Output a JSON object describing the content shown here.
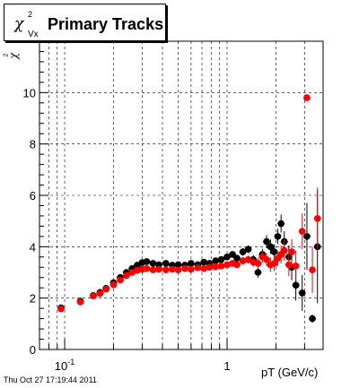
{
  "title_text": "Primary Tracks",
  "title_symbol": "χ",
  "title_sup": "2",
  "title_sub": "Vx",
  "date": "Thu Oct 27 17:19:44 2011",
  "x_axis_label": "pT (GeV/c)",
  "y_axis_label": "χ",
  "y_axis_sup": "2",
  "chart_data": {
    "type": "scatter",
    "xscale": "log",
    "xlim": [
      0.07,
      3.9
    ],
    "ylim": [
      0,
      12
    ],
    "grid": true,
    "x_ticks": [
      {
        "value": 0.1,
        "label": "10",
        "sup": "-1"
      },
      {
        "value": 1,
        "label": "1"
      }
    ],
    "y_ticks": [
      0,
      2,
      4,
      6,
      8,
      10
    ],
    "series": [
      {
        "color": "#000000",
        "points": [
          {
            "x": 0.095,
            "y": 1.62,
            "e": 0.05
          },
          {
            "x": 0.125,
            "y": 1.88,
            "e": 0.05
          },
          {
            "x": 0.15,
            "y": 2.1,
            "e": 0.05
          },
          {
            "x": 0.165,
            "y": 2.22,
            "e": 0.05
          },
          {
            "x": 0.18,
            "y": 2.38,
            "e": 0.05
          },
          {
            "x": 0.2,
            "y": 2.6,
            "e": 0.05
          },
          {
            "x": 0.22,
            "y": 2.8,
            "e": 0.05
          },
          {
            "x": 0.24,
            "y": 3.0,
            "e": 0.05
          },
          {
            "x": 0.26,
            "y": 3.15,
            "e": 0.05
          },
          {
            "x": 0.28,
            "y": 3.28,
            "e": 0.05
          },
          {
            "x": 0.3,
            "y": 3.38,
            "e": 0.05
          },
          {
            "x": 0.32,
            "y": 3.42,
            "e": 0.05
          },
          {
            "x": 0.35,
            "y": 3.35,
            "e": 0.05
          },
          {
            "x": 0.38,
            "y": 3.3,
            "e": 0.05
          },
          {
            "x": 0.42,
            "y": 3.35,
            "e": 0.05
          },
          {
            "x": 0.46,
            "y": 3.28,
            "e": 0.05
          },
          {
            "x": 0.5,
            "y": 3.3,
            "e": 0.05
          },
          {
            "x": 0.55,
            "y": 3.28,
            "e": 0.05
          },
          {
            "x": 0.6,
            "y": 3.35,
            "e": 0.05
          },
          {
            "x": 0.66,
            "y": 3.3,
            "e": 0.05
          },
          {
            "x": 0.72,
            "y": 3.4,
            "e": 0.05
          },
          {
            "x": 0.78,
            "y": 3.35,
            "e": 0.05
          },
          {
            "x": 0.85,
            "y": 3.45,
            "e": 0.05
          },
          {
            "x": 0.92,
            "y": 3.5,
            "e": 0.08
          },
          {
            "x": 1.0,
            "y": 3.6,
            "e": 0.1
          },
          {
            "x": 1.08,
            "y": 3.7,
            "e": 0.12
          },
          {
            "x": 1.15,
            "y": 3.55,
            "e": 0.12
          },
          {
            "x": 1.25,
            "y": 3.8,
            "e": 0.15
          },
          {
            "x": 1.35,
            "y": 3.9,
            "e": 0.15
          },
          {
            "x": 1.45,
            "y": 3.5,
            "e": 0.18
          },
          {
            "x": 1.55,
            "y": 3.0,
            "e": 0.2
          },
          {
            "x": 1.65,
            "y": 3.7,
            "e": 0.22
          },
          {
            "x": 1.75,
            "y": 4.2,
            "e": 0.25
          },
          {
            "x": 1.85,
            "y": 4.0,
            "e": 0.28
          },
          {
            "x": 1.95,
            "y": 3.8,
            "e": 0.3
          },
          {
            "x": 2.05,
            "y": 4.4,
            "e": 0.3
          },
          {
            "x": 2.15,
            "y": 4.9,
            "e": 0.35
          },
          {
            "x": 2.25,
            "y": 4.2,
            "e": 0.4
          },
          {
            "x": 2.4,
            "y": 3.6,
            "e": 0.45
          },
          {
            "x": 2.5,
            "y": 3.2,
            "e": 0.5
          },
          {
            "x": 2.65,
            "y": 2.5,
            "e": 0.6
          },
          {
            "x": 2.9,
            "y": 2.2,
            "e": 0.7
          },
          {
            "x": 3.1,
            "y": 4.4,
            "e": 1.3
          },
          {
            "x": 3.35,
            "y": 1.2,
            "e": 0.15
          },
          {
            "x": 3.6,
            "y": 4.0,
            "e": 2.2
          }
        ]
      },
      {
        "color": "#ff0000",
        "points": [
          {
            "x": 0.095,
            "y": 1.58,
            "e": 0.05
          },
          {
            "x": 0.125,
            "y": 1.85,
            "e": 0.05
          },
          {
            "x": 0.15,
            "y": 2.08,
            "e": 0.05
          },
          {
            "x": 0.165,
            "y": 2.18,
            "e": 0.05
          },
          {
            "x": 0.18,
            "y": 2.35,
            "e": 0.05
          },
          {
            "x": 0.2,
            "y": 2.52,
            "e": 0.05
          },
          {
            "x": 0.22,
            "y": 2.7,
            "e": 0.05
          },
          {
            "x": 0.24,
            "y": 2.88,
            "e": 0.05
          },
          {
            "x": 0.26,
            "y": 3.0,
            "e": 0.05
          },
          {
            "x": 0.28,
            "y": 3.08,
            "e": 0.05
          },
          {
            "x": 0.3,
            "y": 3.12,
            "e": 0.05
          },
          {
            "x": 0.32,
            "y": 3.15,
            "e": 0.05
          },
          {
            "x": 0.35,
            "y": 3.1,
            "e": 0.05
          },
          {
            "x": 0.38,
            "y": 3.12,
            "e": 0.05
          },
          {
            "x": 0.42,
            "y": 3.1,
            "e": 0.05
          },
          {
            "x": 0.46,
            "y": 3.12,
            "e": 0.05
          },
          {
            "x": 0.5,
            "y": 3.1,
            "e": 0.05
          },
          {
            "x": 0.55,
            "y": 3.15,
            "e": 0.05
          },
          {
            "x": 0.6,
            "y": 3.12,
            "e": 0.05
          },
          {
            "x": 0.66,
            "y": 3.18,
            "e": 0.05
          },
          {
            "x": 0.72,
            "y": 3.15,
            "e": 0.05
          },
          {
            "x": 0.78,
            "y": 3.2,
            "e": 0.05
          },
          {
            "x": 0.85,
            "y": 3.22,
            "e": 0.05
          },
          {
            "x": 0.92,
            "y": 3.25,
            "e": 0.08
          },
          {
            "x": 1.0,
            "y": 3.3,
            "e": 0.1
          },
          {
            "x": 1.08,
            "y": 3.35,
            "e": 0.12
          },
          {
            "x": 1.15,
            "y": 3.3,
            "e": 0.12
          },
          {
            "x": 1.25,
            "y": 3.45,
            "e": 0.15
          },
          {
            "x": 1.35,
            "y": 3.5,
            "e": 0.15
          },
          {
            "x": 1.45,
            "y": 3.4,
            "e": 0.18
          },
          {
            "x": 1.55,
            "y": 3.35,
            "e": 0.2
          },
          {
            "x": 1.65,
            "y": 3.6,
            "e": 0.22
          },
          {
            "x": 1.75,
            "y": 3.5,
            "e": 0.25
          },
          {
            "x": 1.85,
            "y": 3.3,
            "e": 0.28
          },
          {
            "x": 1.95,
            "y": 3.35,
            "e": 0.3
          },
          {
            "x": 2.05,
            "y": 3.55,
            "e": 0.3
          },
          {
            "x": 2.15,
            "y": 3.7,
            "e": 0.35
          },
          {
            "x": 2.25,
            "y": 3.85,
            "e": 0.4
          },
          {
            "x": 2.4,
            "y": 3.3,
            "e": 0.45
          },
          {
            "x": 2.5,
            "y": 3.8,
            "e": 0.5
          },
          {
            "x": 2.65,
            "y": 3.25,
            "e": 0.6
          },
          {
            "x": 2.9,
            "y": 4.6,
            "e": 0.7
          },
          {
            "x": 3.1,
            "y": 9.8,
            "e": 0.15
          },
          {
            "x": 3.35,
            "y": 3.1,
            "e": 0.9
          },
          {
            "x": 3.6,
            "y": 5.1,
            "e": 1.2
          }
        ]
      }
    ]
  }
}
